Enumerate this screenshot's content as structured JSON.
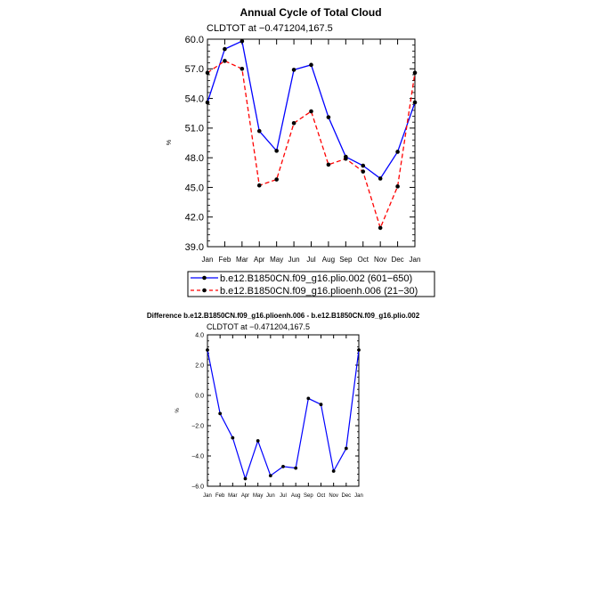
{
  "chart_data": [
    {
      "type": "line",
      "title": "Annual Cycle of Total Cloud",
      "subtitle": "CLDTOT at −0.471204,167.5",
      "ylabel": "%",
      "xlabel": "",
      "categories": [
        "Jan",
        "Feb",
        "Mar",
        "Apr",
        "May",
        "Jun",
        "Jul",
        "Aug",
        "Sep",
        "Oct",
        "Nov",
        "Dec",
        "Jan"
      ],
      "ylim": [
        39.0,
        60.0
      ],
      "yticks": [
        "39.0",
        "42.0",
        "45.0",
        "48.0",
        "51.0",
        "54.0",
        "57.0",
        "60.0"
      ],
      "grid": false,
      "legend_position": "bottom",
      "series": [
        {
          "name": "b.e12.B1850CN.f09_g16.plio.002 (601−650)",
          "color": "#0000ff",
          "dash": "solid",
          "values": [
            53.6,
            59.0,
            59.8,
            50.7,
            48.7,
            56.9,
            57.4,
            52.1,
            48.1,
            47.2,
            45.9,
            48.6,
            53.6
          ]
        },
        {
          "name": "b.e12.B1850CN.f09_g16.plioenh.006 (21−30)",
          "color": "#ff0000",
          "dash": "dashed",
          "values": [
            56.6,
            57.8,
            57.0,
            45.2,
            45.8,
            51.5,
            52.7,
            47.3,
            47.9,
            46.6,
            40.9,
            45.1,
            56.6
          ]
        }
      ]
    },
    {
      "type": "line",
      "title": "Difference b.e12.B1850CN.f09_g16.plioenh.006 - b.e12.B1850CN.f09_g16.plio.002",
      "subtitle": "CLDTOT at −0.471204,167.5",
      "ylabel": "%",
      "xlabel": "",
      "categories": [
        "Jan",
        "Feb",
        "Mar",
        "Apr",
        "May",
        "Jun",
        "Jul",
        "Aug",
        "Sep",
        "Oct",
        "Nov",
        "Dec",
        "Jan"
      ],
      "ylim": [
        -6.0,
        4.0
      ],
      "yticks": [
        "−6.0",
        "−4.0",
        "−2.0",
        "0.0",
        "2.0",
        "4.0"
      ],
      "grid": false,
      "series": [
        {
          "name": "",
          "color": "#0000ff",
          "dash": "solid",
          "values": [
            3.0,
            -1.2,
            -2.8,
            -5.5,
            -3.0,
            -5.3,
            -4.7,
            -4.8,
            -0.2,
            -0.6,
            -5.0,
            -3.5,
            3.0
          ]
        }
      ]
    }
  ]
}
